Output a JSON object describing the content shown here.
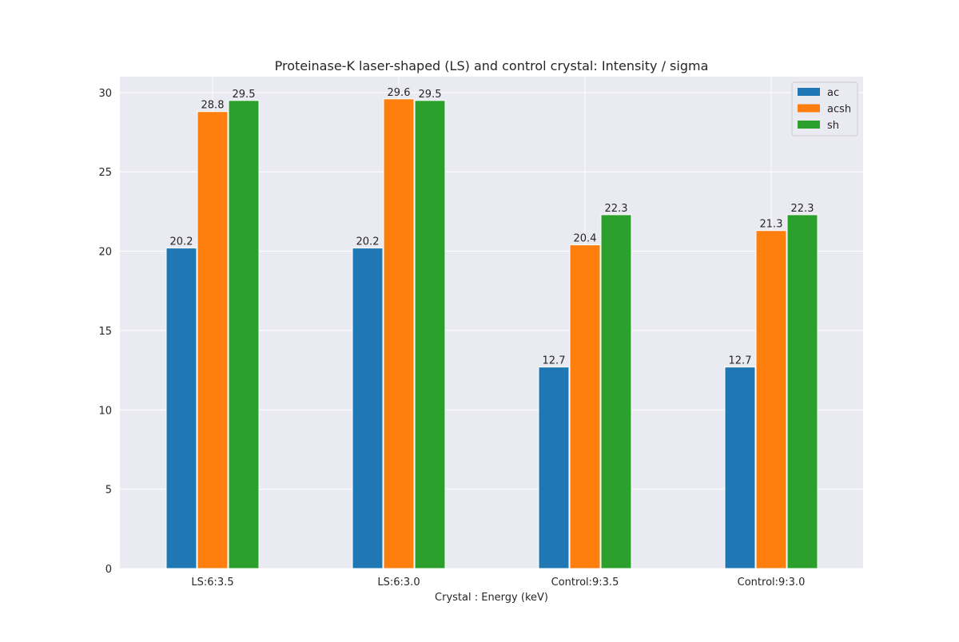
{
  "chart_data": {
    "type": "bar",
    "title": "Proteinase-K laser-shaped (LS) and control crystal: Intensity / sigma",
    "xlabel": "Crystal : Energy (keV)",
    "ylabel": "",
    "categories": [
      "LS:6:3.5",
      "LS:6:3.0",
      "Control:9:3.5",
      "Control:9:3.0"
    ],
    "series": [
      {
        "name": "ac",
        "color": "#1f77b4",
        "values": [
          20.2,
          20.2,
          12.7,
          12.7
        ]
      },
      {
        "name": "acsh",
        "color": "#ff7f0e",
        "values": [
          28.8,
          29.6,
          20.4,
          21.3
        ]
      },
      {
        "name": "sh",
        "color": "#2ca02c",
        "values": [
          29.5,
          29.5,
          22.3,
          22.3
        ]
      }
    ],
    "ylim": [
      0,
      31
    ],
    "yticks": [
      0,
      5,
      10,
      15,
      20,
      25,
      30
    ],
    "grid": true,
    "legend_position": "top-right",
    "background_color": "#eaeaf2"
  }
}
